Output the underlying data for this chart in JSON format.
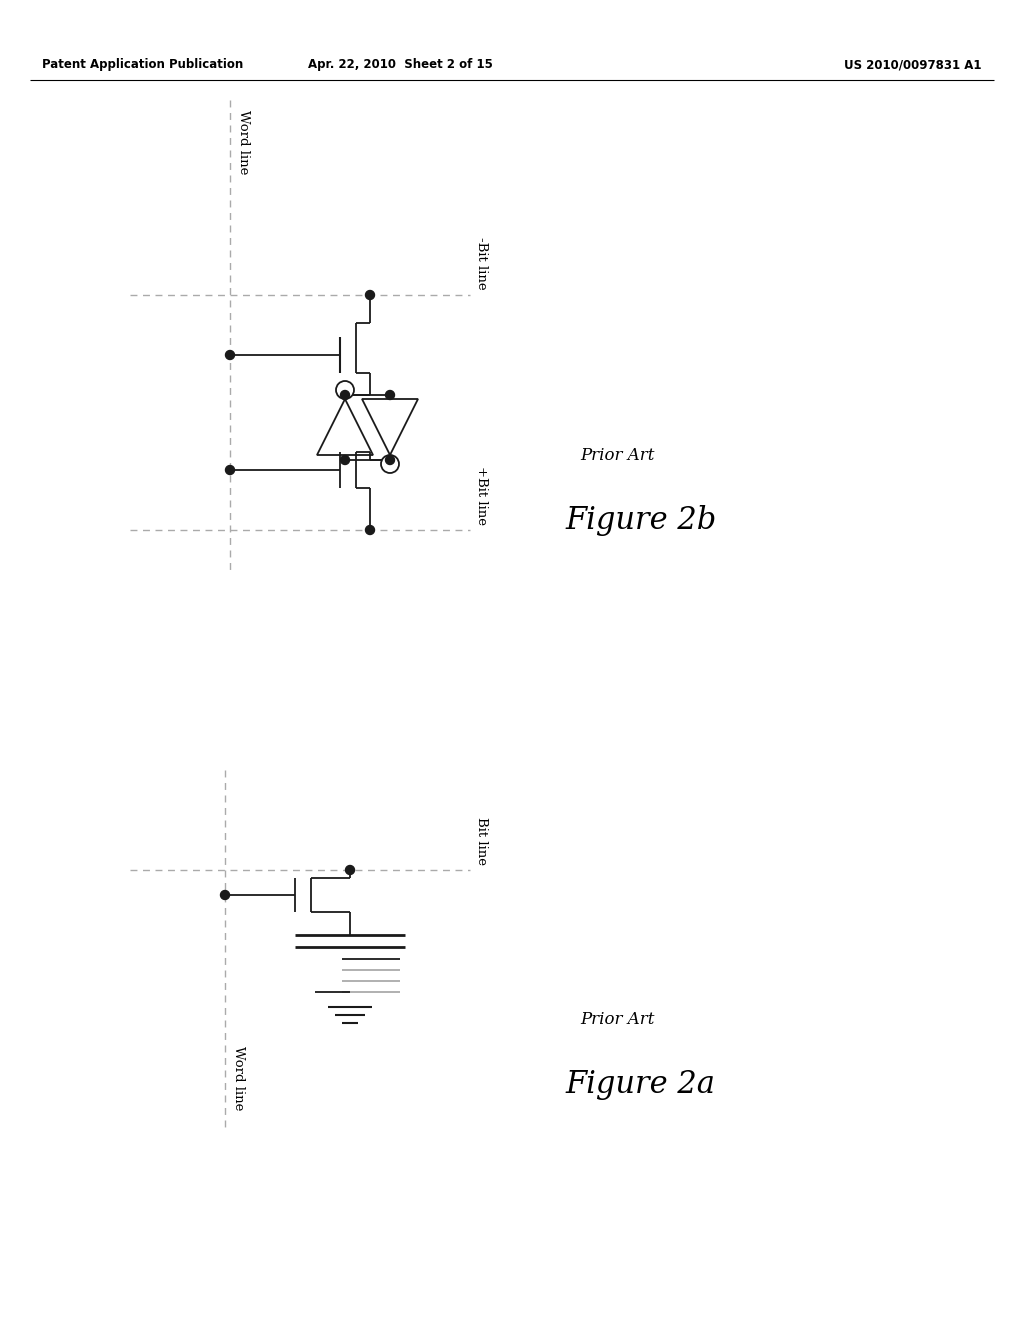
{
  "header_left": "Patent Application Publication",
  "header_mid": "Apr. 22, 2010  Sheet 2 of 15",
  "header_right": "US 2010/0097831 A1",
  "word_line": "Word line",
  "neg_bit_line": "-Bit line",
  "pos_bit_line": "+Bit line",
  "bit_line": "Bit line",
  "prior_art": "Prior Art",
  "fig2b": "Figure 2b",
  "fig2a": "Figure 2a",
  "bg_color": "#ffffff",
  "line_color": "#1a1a1a",
  "dash_color": "#aaaaaa",
  "gray_color": "#888888"
}
